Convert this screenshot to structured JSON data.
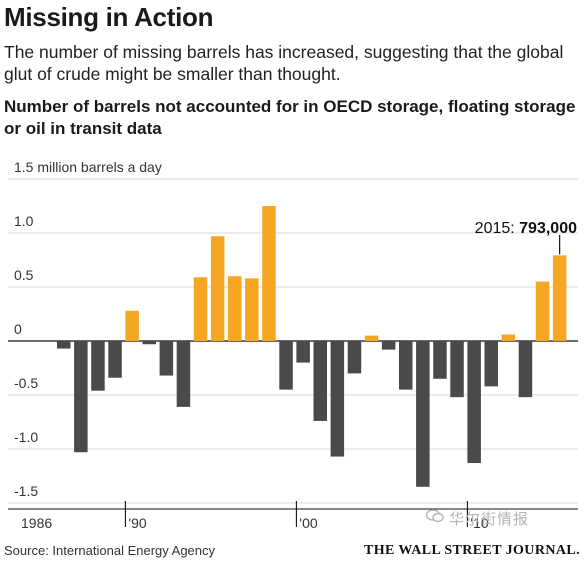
{
  "header": {
    "title": "Missing in Action",
    "subtitle": "The number of missing barrels has increased, suggesting that the global glut of crude might be smaller than thought.",
    "chart_title": "Number of barrels not accounted for in OECD storage, floating storage or oil in transit data"
  },
  "footer": {
    "source": "Source: International Energy Agency",
    "brand": "THE WALL STREET JOURNAL.",
    "watermark": "华尔街情报"
  },
  "colors": {
    "positive": "#f5a623",
    "negative": "#4a4a4a"
  },
  "chart_data": {
    "type": "bar",
    "title": "Number of barrels not accounted for in OECD storage, floating storage or oil in transit data",
    "ylabel": "1.5 million barrels a day",
    "ylim": [
      -1.6,
      1.55
    ],
    "grid": true,
    "y_tick_labels": [
      {
        "value": 1.5,
        "label": "1.5 million barrels a day"
      },
      {
        "value": 1.0,
        "label": "1.0"
      },
      {
        "value": 0.5,
        "label": "0.5"
      },
      {
        "value": 0,
        "label": "0"
      },
      {
        "value": -0.5,
        "label": "-0.5"
      },
      {
        "value": -1.0,
        "label": "-1.0"
      },
      {
        "value": -1.5,
        "label": "-1.5"
      }
    ],
    "x_tick_labels": [
      {
        "year": 1986,
        "label": "1986"
      },
      {
        "year": 1990,
        "label": "'90"
      },
      {
        "year": 2000,
        "label": "'00"
      },
      {
        "year": 2010,
        "label": "'10"
      }
    ],
    "years": [
      1986,
      1987,
      1988,
      1989,
      1990,
      1991,
      1992,
      1993,
      1994,
      1995,
      1996,
      1997,
      1998,
      1999,
      2000,
      2001,
      2002,
      2003,
      2004,
      2005,
      2006,
      2007,
      2008,
      2009,
      2010,
      2011,
      2012,
      2013,
      2014,
      2015
    ],
    "values": [
      -0.07,
      -1.03,
      -0.46,
      -0.34,
      0.28,
      -0.03,
      -0.32,
      -0.61,
      0.59,
      0.97,
      0.6,
      0.58,
      1.25,
      -0.45,
      -0.2,
      -0.74,
      -1.07,
      -0.3,
      0.05,
      -0.08,
      -0.45,
      -1.35,
      -0.35,
      -0.52,
      -1.13,
      -0.42,
      0.06,
      -0.52,
      0.55,
      0.793
    ],
    "annotation": {
      "year": 2015,
      "prefix": "2015: ",
      "value_label": "793,000"
    }
  }
}
